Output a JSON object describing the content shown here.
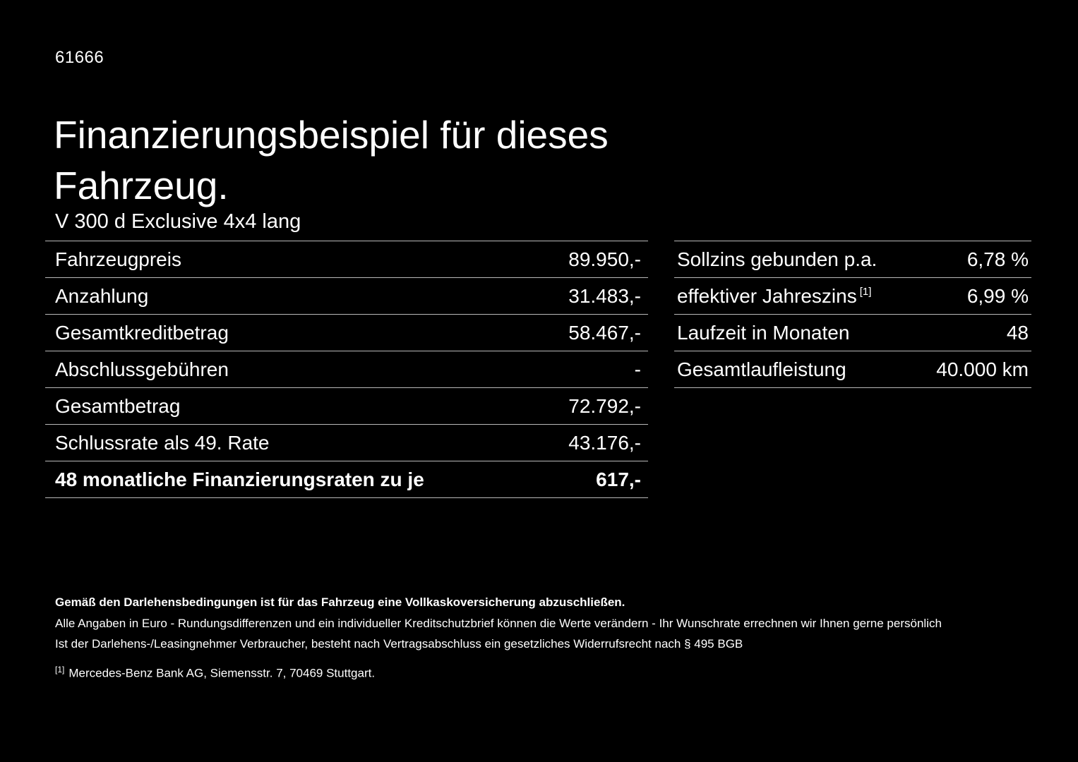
{
  "page": {
    "doc_number": "61666",
    "title": "Finanzierungsbeispiel für dieses Fahrzeug.",
    "vehicle_name": "V 300 d Exclusive 4x4 lang"
  },
  "financing_table": {
    "rows": [
      {
        "label": "Fahrzeugpreis",
        "value": "89.950,-"
      },
      {
        "label": "Anzahlung",
        "value": "31.483,-"
      },
      {
        "label": "Gesamtkreditbetrag",
        "value": "58.467,-"
      },
      {
        "label": "Abschlussgebühren",
        "value": "-"
      },
      {
        "label": "Gesamtbetrag",
        "value": "72.792,-"
      },
      {
        "label": "Schlussrate als 49. Rate",
        "value": "43.176,-"
      },
      {
        "label": "48 monatliche Finanzierungsraten zu je",
        "value": "617,-"
      }
    ]
  },
  "conditions_table": {
    "rows": [
      {
        "label": "Sollzins gebunden p.a.",
        "value": "6,78 %"
      },
      {
        "label": "effektiver Jahreszins",
        "sup": "[1]",
        "value": "6,99 %"
      },
      {
        "label": "Laufzeit in Monaten",
        "value": "48"
      },
      {
        "label": "Gesamtlaufleistung",
        "value": "40.000 km"
      }
    ]
  },
  "footnotes": {
    "insurance_note": "Gemäß den Darlehensbedingungen ist für das Fahrzeug eine Vollkaskoversicherung abzuschließen.",
    "line1": "Alle Angaben in Euro - Rundungsdifferenzen und ein individueller Kreditschutzbrief können die Werte verändern - Ihr Wunschrate errechnen wir Ihnen gerne persönlich",
    "line2": "Ist der Darlehens-/Leasingnehmer Verbraucher, besteht nach Vertragsabschluss ein gesetzliches Widerrufsrecht nach § 495 BGB",
    "ref_marker": "[1]",
    "ref_text": "Mercedes-Benz Bank AG, Siemensstr. 7, 70469 Stuttgart."
  }
}
